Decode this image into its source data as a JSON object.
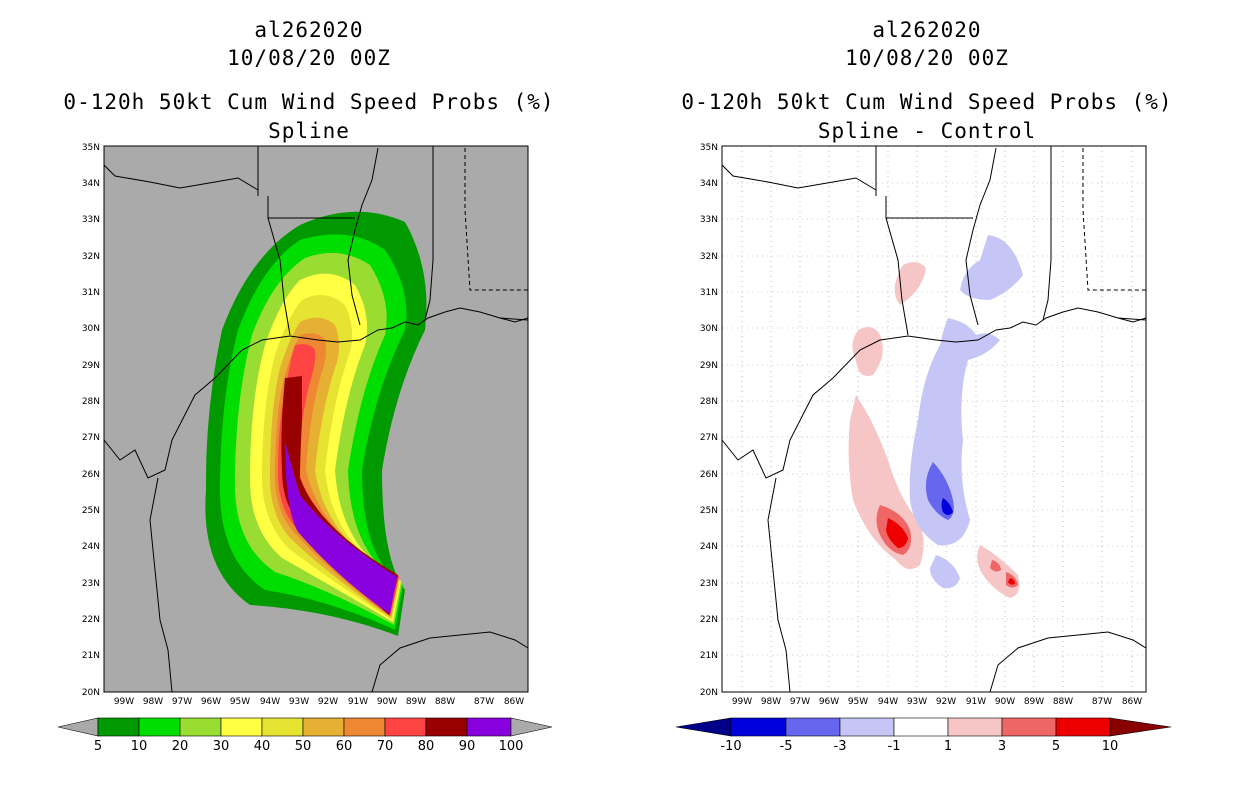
{
  "left": {
    "title": {
      "storm": "al262020",
      "datetime": "10/08/20 00Z",
      "product": "0-120h 50kt Cum Wind Speed Probs (%)",
      "subtitle": "Spline"
    },
    "colorbar": {
      "labels": [
        "5",
        "10",
        "20",
        "30",
        "40",
        "50",
        "60",
        "70",
        "80",
        "90",
        "100"
      ],
      "colors": [
        "#009900",
        "#00dd00",
        "#99dd33",
        "#ffff44",
        "#e6e333",
        "#e6b033",
        "#ee8833",
        "#ff4444",
        "#990000",
        "#8800dd"
      ],
      "end_color": "#aaaaaa"
    },
    "background": "#aaaaaa"
  },
  "right": {
    "title": {
      "storm": "al262020",
      "datetime": "10/08/20 00Z",
      "product": "0-120h 50kt Cum Wind Speed Probs (%)",
      "subtitle": "Spline - Control"
    },
    "colorbar": {
      "labels": [
        "-10",
        "-5",
        "-3",
        "-1",
        "1",
        "3",
        "5",
        "10"
      ],
      "colors": [
        "#0000dd",
        "#6666ee",
        "#c6c6f6",
        "#ffffff",
        "#f6c6c6",
        "#ee6666",
        "#ee0000"
      ],
      "low_color": "#000088",
      "high_color": "#880000"
    },
    "background": "#ffffff"
  },
  "axes": {
    "lat_labels": [
      "35N",
      "34N",
      "33N",
      "32N",
      "31N",
      "30N",
      "29N",
      "28N",
      "27N",
      "26N",
      "25N",
      "24N",
      "23N",
      "22N",
      "21N",
      "20N"
    ],
    "lon_labels": [
      "99W",
      "98W",
      "97W",
      "96W",
      "95W",
      "94W",
      "93W",
      "92W",
      "91W",
      "90W",
      "89W",
      "88W",
      "87W",
      "86W"
    ]
  }
}
